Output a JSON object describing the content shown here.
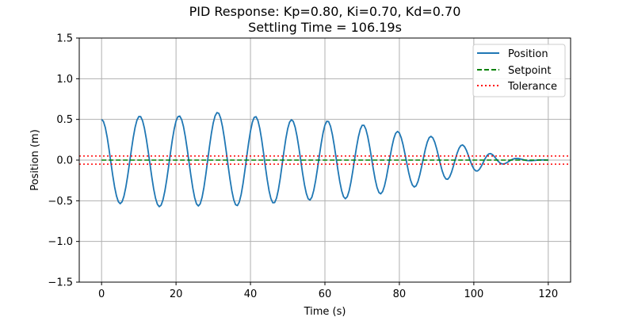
{
  "chart_data": {
    "type": "line",
    "title": "PID Response: Kp=0.80, Ki=0.70, Kd=0.70",
    "subtitle": "Settling Time = 106.19s",
    "xlabel": "Time (s)",
    "ylabel": "Position (m)",
    "xlim": [
      -6,
      126
    ],
    "ylim": [
      -1.5,
      1.5
    ],
    "xticks": [
      0,
      20,
      40,
      60,
      80,
      100,
      120
    ],
    "xtick_labels": [
      "0",
      "20",
      "40",
      "60",
      "80",
      "100",
      "120"
    ],
    "yticks": [
      -1.5,
      -1.0,
      -0.5,
      0.0,
      0.5,
      1.0,
      1.5
    ],
    "ytick_labels": [
      "−1.5",
      "−1.0",
      "−0.5",
      "0.0",
      "0.5",
      "1.0",
      "1.5"
    ],
    "grid": true,
    "legend_position": "top-right",
    "series": [
      {
        "name": "Position",
        "style": "solid",
        "color": "#1f77b4",
        "x": [
          0,
          0.5,
          1,
          1.5,
          2,
          2.5,
          3,
          3.5,
          4,
          4.5,
          5,
          5.5,
          6,
          6.5,
          7,
          7.5,
          8,
          8.5,
          9,
          9.5,
          10,
          10.5,
          11,
          11.5,
          12,
          12.5,
          13,
          13.5,
          14,
          14.5,
          15,
          15.5,
          16,
          16.5,
          17,
          17.5,
          18,
          18.5,
          19,
          19.5,
          20,
          20.5,
          21,
          21.5,
          22,
          22.5,
          23,
          23.5,
          24,
          24.5,
          25,
          25.5,
          26,
          26.5,
          27,
          27.5,
          28,
          28.5,
          29,
          29.5,
          30,
          30.5,
          31,
          31.5,
          32,
          32.5,
          33,
          33.5,
          34,
          34.5,
          35,
          35.5,
          36,
          36.5,
          37,
          37.5,
          38,
          38.5,
          39,
          39.5,
          40,
          40.5,
          41,
          41.5,
          42,
          42.5,
          43,
          43.5,
          44,
          44.5,
          45,
          45.5,
          46,
          46.5,
          47,
          47.5,
          48,
          48.5,
          49,
          49.5,
          50,
          50.5,
          51,
          51.5,
          52,
          52.5,
          53,
          53.5,
          54,
          54.5,
          55,
          55.5,
          56,
          56.5,
          57,
          57.5,
          58,
          58.5,
          59,
          59.5,
          60,
          60.5,
          61,
          61.5,
          62,
          62.5,
          63,
          63.5,
          64,
          64.5,
          65,
          65.5,
          66,
          66.5,
          67,
          67.5,
          68,
          68.5,
          69,
          69.5,
          70,
          70.5,
          71,
          71.5,
          72,
          72.5,
          73,
          73.5,
          74,
          74.5,
          75,
          75.5,
          76,
          76.5,
          77,
          77.5,
          78,
          78.5,
          79,
          79.5,
          80,
          80.5,
          81,
          81.5,
          82,
          82.5,
          83,
          83.5,
          84,
          84.5,
          85,
          85.5,
          86,
          86.5,
          87,
          87.5,
          88,
          88.5,
          89,
          89.5,
          90,
          90.5,
          91,
          91.5,
          92,
          92.5,
          93,
          93.5,
          94,
          94.5,
          95,
          95.5,
          96,
          96.5,
          97,
          97.5,
          98,
          98.5,
          99,
          99.5,
          100,
          100.5,
          101,
          101.5,
          102,
          102.5,
          103,
          103.5,
          104,
          104.5,
          105,
          105.5,
          106,
          106.5,
          107,
          107.5,
          108,
          108.5,
          109,
          109.5,
          110,
          110.5,
          111,
          111.5,
          112,
          112.5,
          113,
          113.5,
          114,
          114.5,
          115,
          115.5,
          116,
          116.5,
          117,
          117.5,
          118,
          118.5,
          119,
          119.5,
          120
        ],
        "y": [
          0.5,
          0.475,
          0.4,
          0.282,
          0.133,
          -0.03,
          -0.189,
          -0.33,
          -0.44,
          -0.511,
          -0.536,
          -0.513,
          -0.445,
          -0.337,
          -0.197,
          -0.039,
          0.124,
          0.275,
          0.401,
          0.49,
          0.535,
          0.534,
          0.485,
          0.393,
          0.265,
          0.114,
          -0.049,
          -0.211,
          -0.356,
          -0.47,
          -0.544,
          -0.573,
          -0.553,
          -0.488,
          -0.381,
          -0.241,
          -0.08,
          0.088,
          0.246,
          0.38,
          0.479,
          0.534,
          0.541,
          0.499,
          0.413,
          0.288,
          0.137,
          -0.028,
          -0.193,
          -0.342,
          -0.461,
          -0.538,
          -0.564,
          -0.537,
          -0.458,
          -0.334,
          -0.178,
          -0.004,
          0.171,
          0.329,
          0.457,
          0.544,
          0.584,
          0.574,
          0.513,
          0.407,
          0.266,
          0.102,
          -0.071,
          -0.236,
          -0.379,
          -0.487,
          -0.549,
          -0.559,
          -0.515,
          -0.422,
          -0.288,
          -0.127,
          0.045,
          0.212,
          0.356,
          0.464,
          0.525,
          0.533,
          0.486,
          0.389,
          0.253,
          0.091,
          -0.08,
          -0.241,
          -0.378,
          -0.475,
          -0.525,
          -0.522,
          -0.467,
          -0.364,
          -0.223,
          -0.059,
          0.109,
          0.263,
          0.386,
          0.466,
          0.496,
          0.475,
          0.405,
          0.294,
          0.153,
          -0.004,
          -0.161,
          -0.301,
          -0.41,
          -0.476,
          -0.491,
          -0.455,
          -0.372,
          -0.252,
          -0.106,
          0.052,
          0.204,
          0.335,
          0.43,
          0.477,
          0.472,
          0.416,
          0.315,
          0.181,
          0.029,
          -0.125,
          -0.266,
          -0.378,
          -0.45,
          -0.475,
          -0.451,
          -0.379,
          -0.268,
          -0.131,
          0.018,
          0.162,
          0.286,
          0.378,
          0.427,
          0.427,
          0.379,
          0.289,
          0.169,
          0.031,
          -0.11,
          -0.237,
          -0.337,
          -0.398,
          -0.415,
          -0.387,
          -0.318,
          -0.216,
          -0.091,
          0.041,
          0.164,
          0.264,
          0.329,
          0.352,
          0.333,
          0.275,
          0.186,
          0.077,
          -0.04,
          -0.152,
          -0.245,
          -0.307,
          -0.331,
          -0.316,
          -0.263,
          -0.179,
          -0.076,
          0.034,
          0.138,
          0.222,
          0.275,
          0.292,
          0.272,
          0.22,
          0.143,
          0.05,
          -0.045,
          -0.131,
          -0.196,
          -0.232,
          -0.236,
          -0.207,
          -0.151,
          -0.076,
          0.006,
          0.082,
          0.142,
          0.178,
          0.186,
          0.165,
          0.121,
          0.061,
          -0.004,
          -0.064,
          -0.108,
          -0.132,
          -0.134,
          -0.114,
          -0.077,
          -0.031,
          0.015,
          0.053,
          0.075,
          0.08,
          0.068,
          0.044,
          0.015,
          -0.013,
          -0.034,
          -0.046,
          -0.048,
          -0.041,
          -0.028,
          -0.013,
          0.001,
          0.012,
          0.019,
          0.021,
          0.019,
          0.014,
          0.008,
          0.002,
          -0.003,
          -0.006,
          -0.007,
          -0.007,
          -0.005,
          -0.003,
          -0.001,
          0.001,
          0.002,
          0.002,
          0.002,
          0.001,
          0
        ]
      },
      {
        "name": "Setpoint",
        "style": "dashed",
        "color": "#008000",
        "x": [
          0,
          120
        ],
        "y": [
          0,
          0
        ]
      },
      {
        "name": "Tolerance",
        "style": "dotted",
        "color": "#ff0000",
        "x": [
          -6,
          126
        ],
        "y_lines": [
          0.05,
          -0.05
        ]
      }
    ]
  }
}
